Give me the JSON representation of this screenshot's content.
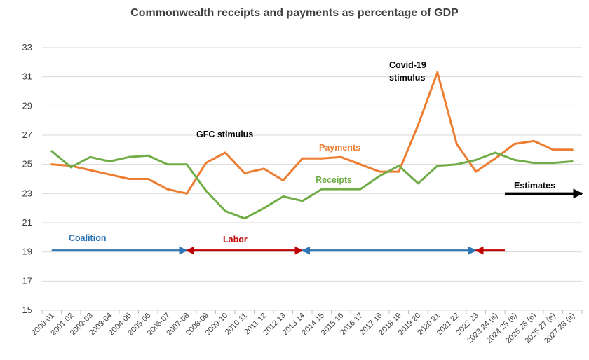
{
  "chart_data": {
    "type": "line",
    "title": "Commonwealth receipts and payments as percentage of GDP",
    "ylim": [
      15,
      33
    ],
    "yticks": [
      15,
      17,
      19,
      21,
      23,
      25,
      27,
      29,
      31,
      33
    ],
    "grid": true,
    "categories": [
      "2000-01",
      "2001-02",
      "2002-03",
      "2003-04",
      "2004-05",
      "2005-06",
      "2006-07",
      "2007-08",
      "2008-09",
      "2009-10",
      "2010 11",
      "2011 12",
      "2012 13",
      "2013 14",
      "2014 15",
      "2015 16",
      "2016 17",
      "2017 18",
      "2018 19",
      "2019 20",
      "2020 21",
      "2021 22",
      "2022 23",
      "2023 24 (e)",
      "2024 25 (e)",
      "2025 26 (e)",
      "2026 27 (e)",
      "2027 28 (e)"
    ],
    "series": [
      {
        "name": "Payments",
        "color": "#ED7D31",
        "values": [
          25.0,
          24.9,
          24.6,
          24.3,
          24.0,
          24.0,
          23.3,
          23.0,
          25.1,
          25.8,
          24.4,
          24.7,
          23.9,
          25.4,
          25.4,
          25.5,
          25.0,
          24.5,
          24.5,
          27.7,
          31.3,
          26.4,
          24.5,
          25.4,
          26.4,
          26.6,
          26.0,
          26.0
        ]
      },
      {
        "name": "Receipts",
        "color": "#70AD47",
        "values": [
          25.9,
          24.8,
          25.5,
          25.2,
          25.5,
          25.6,
          25.0,
          25.0,
          23.2,
          21.8,
          21.3,
          22.0,
          22.8,
          22.5,
          23.3,
          23.3,
          23.3,
          24.2,
          24.9,
          23.7,
          24.9,
          25.0,
          25.3,
          25.8,
          25.3,
          25.1,
          25.1,
          25.2
        ]
      }
    ],
    "annotations": [
      {
        "id": "gfc",
        "text": "GFC stimulus",
        "color": "#000000"
      },
      {
        "id": "covid1",
        "text": "Covid-19",
        "color": "#000000"
      },
      {
        "id": "covid2",
        "text": "stimulus",
        "color": "#000000"
      },
      {
        "id": "payments",
        "text": "Payments",
        "color": "#ED7D31"
      },
      {
        "id": "receipts",
        "text": "Receipts",
        "color": "#70AD47"
      },
      {
        "id": "estimates",
        "text": "Estimates",
        "color": "#000000"
      },
      {
        "id": "coalition",
        "text": "Coalition",
        "color": "#2E75B6"
      },
      {
        "id": "labor",
        "text": "Labor",
        "color": "#C00000"
      }
    ],
    "period_arrows": [
      {
        "id": "coalition-1",
        "from": 0,
        "to": 7,
        "y": 19.1,
        "color": "#2E75B6",
        "heads": "end"
      },
      {
        "id": "labor-1",
        "from": 7,
        "to": 13,
        "y": 19.1,
        "color": "#C00000",
        "heads": "both"
      },
      {
        "id": "coalition-2",
        "from": 13,
        "to": 22,
        "y": 19.1,
        "color": "#2E75B6",
        "heads": "both"
      },
      {
        "id": "labor-2",
        "from": 22,
        "to": 23.5,
        "y": 19.1,
        "color": "#C00000",
        "heads": "start"
      },
      {
        "id": "estimates-arrow",
        "from": 23.5,
        "to": 27.5,
        "y": 23.0,
        "color": "#000000",
        "heads": "end"
      }
    ]
  }
}
